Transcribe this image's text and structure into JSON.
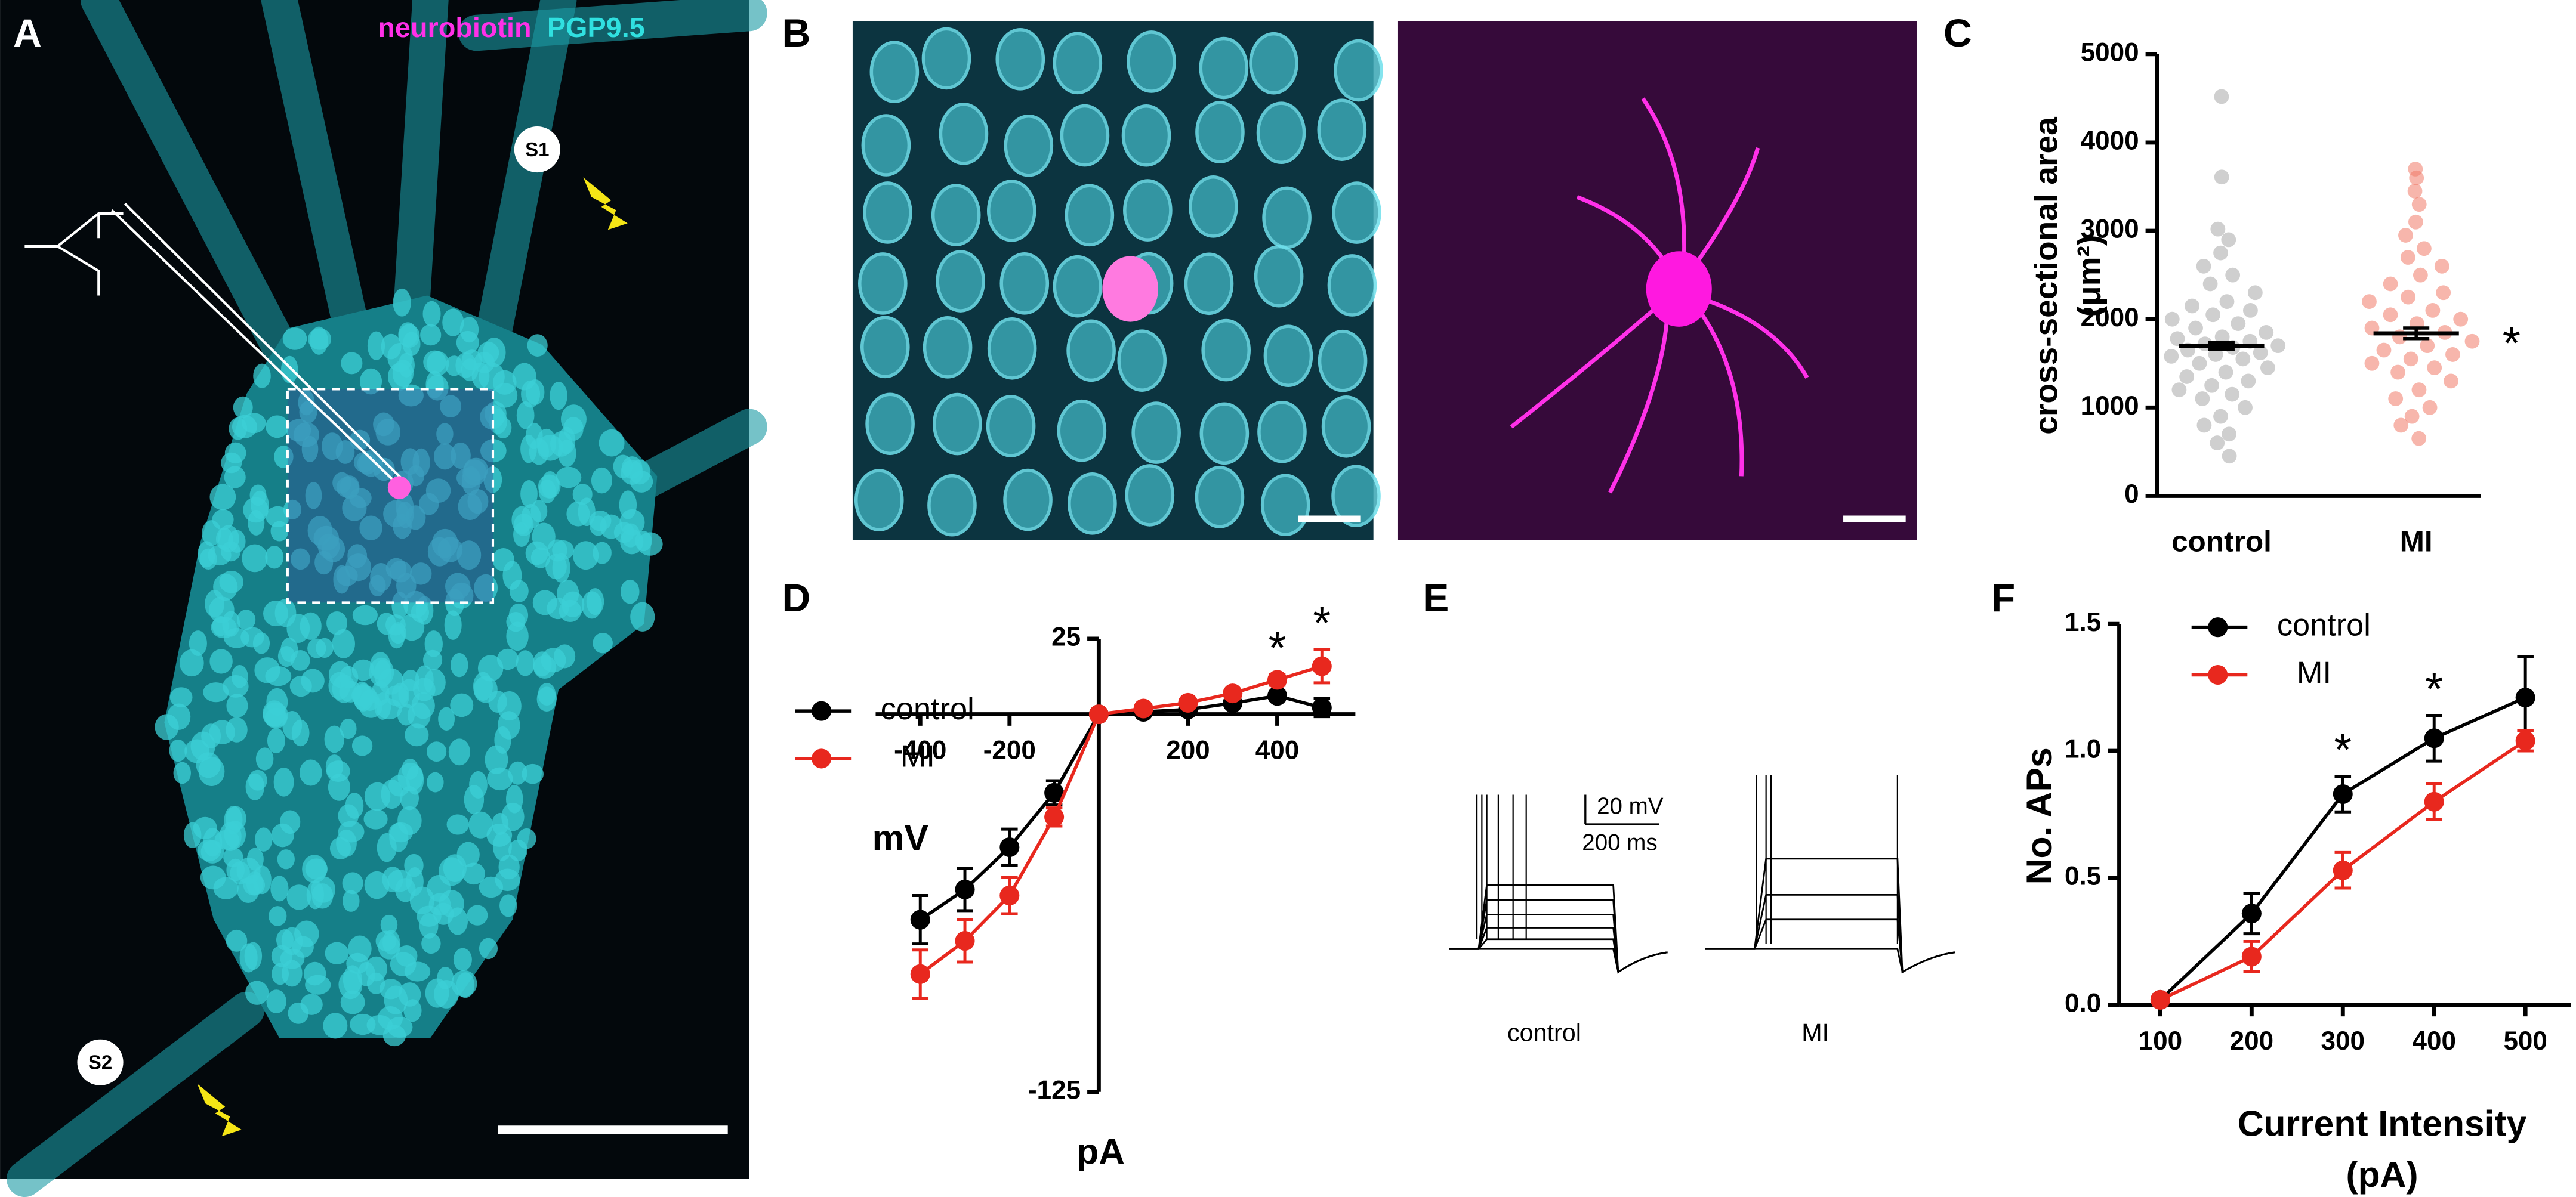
{
  "panel_labels": [
    "A",
    "B",
    "C",
    "D",
    "E",
    "F"
  ],
  "image_a": {
    "stains": [
      "neurobiotin",
      "PGP9.5"
    ],
    "sites": [
      "S1",
      "S2"
    ]
  },
  "traces": {
    "scale_y": "20 mV",
    "scale_x": "200 ms",
    "conditions": [
      "control",
      "MI"
    ]
  },
  "chart_data": [
    {
      "type": "dot",
      "ylabel": [
        "cross-sectional area",
        "(μm²)"
      ],
      "categories": [
        "control",
        "MI"
      ],
      "groups": [
        {
          "color": "#a8a8a8",
          "mean": 1700,
          "sem": 40,
          "values": [
            4520,
            3610,
            3020,
            2900,
            2750,
            2600,
            2500,
            2400,
            2300,
            2200,
            2150,
            2100,
            2050,
            2000,
            1950,
            1900,
            1850,
            1800,
            1780,
            1750,
            1720,
            1700,
            1680,
            1650,
            1620,
            1600,
            1580,
            1550,
            1500,
            1450,
            1400,
            1350,
            1300,
            1250,
            1200,
            1150,
            1100,
            1000,
            900,
            800,
            700,
            600,
            450
          ]
        },
        {
          "color": "#f07a68",
          "mean": 1840,
          "sem": 60,
          "values": [
            3700,
            3600,
            3450,
            3300,
            3100,
            2950,
            2800,
            2700,
            2600,
            2500,
            2400,
            2300,
            2250,
            2200,
            2100,
            2050,
            2000,
            1950,
            1900,
            1850,
            1800,
            1750,
            1700,
            1650,
            1600,
            1550,
            1500,
            1450,
            1400,
            1300,
            1200,
            1100,
            1000,
            900,
            800,
            650
          ]
        }
      ],
      "ylim": [
        0,
        5000
      ],
      "yticks": [
        0,
        1000,
        2000,
        3000,
        4000,
        5000
      ],
      "annotations": [
        {
          "text": "*",
          "x": "MI"
        }
      ]
    },
    {
      "type": "line",
      "axis_position": "origin",
      "legend": "upper left",
      "xlabel": [
        "pA"
      ],
      "ylabel": [
        "mV"
      ],
      "x": [
        -400,
        -300,
        -200,
        -100,
        0,
        100,
        200,
        300,
        400,
        500
      ],
      "series": [
        {
          "name": "control",
          "color": "#000000",
          "values": [
            -68,
            -58,
            -44,
            -26,
            0,
            0.8,
            1.6,
            3.7,
            6.1,
            2.2
          ],
          "errors": [
            8,
            7,
            6,
            4,
            1,
            1,
            1,
            1.5,
            1.5,
            3
          ]
        },
        {
          "name": "MI",
          "color": "#e8281e",
          "values": [
            -86,
            -75,
            -60,
            -34,
            0,
            1.9,
            3.8,
            6.9,
            11.4,
            15.9
          ],
          "errors": [
            8,
            7,
            6,
            3,
            1,
            1,
            1,
            1,
            1.8,
            5.5
          ]
        }
      ],
      "xlim": [
        -500,
        575
      ],
      "ylim": [
        -125,
        25
      ],
      "xticks": [
        -400,
        -200,
        200,
        400
      ],
      "yticks": [
        -125,
        25
      ],
      "annotations": [
        {
          "text": "*",
          "x": 400
        },
        {
          "text": "*",
          "x": 500
        }
      ]
    },
    {
      "type": "line",
      "axis_position": "edge",
      "legend": "upper left",
      "xlabel": [
        "Current Intensity",
        "(pA)"
      ],
      "ylabel": [
        "No. APs"
      ],
      "x": [
        100,
        200,
        300,
        400,
        500
      ],
      "series": [
        {
          "name": "control",
          "color": "#000000",
          "values": [
            0.02,
            0.36,
            0.83,
            1.05,
            1.21
          ],
          "errors": [
            0.02,
            0.08,
            0.07,
            0.09,
            0.16
          ]
        },
        {
          "name": "MI",
          "color": "#e8281e",
          "values": [
            0.02,
            0.19,
            0.53,
            0.8,
            1.04
          ],
          "errors": [
            0.02,
            0.06,
            0.07,
            0.07,
            0.04
          ]
        }
      ],
      "xlim": [
        55,
        550
      ],
      "ylim": [
        0,
        1.5
      ],
      "xticks": [
        100,
        200,
        300,
        400,
        500
      ],
      "yticks": [
        {
          "value": 0,
          "label": "0.0"
        },
        {
          "value": 0.5,
          "label": "0.5"
        },
        {
          "value": 1,
          "label": "1.0"
        },
        {
          "value": 1.5,
          "label": "1.5"
        }
      ],
      "annotations": [
        {
          "text": "*",
          "x": 300
        },
        {
          "text": "*",
          "x": 400
        }
      ]
    }
  ]
}
